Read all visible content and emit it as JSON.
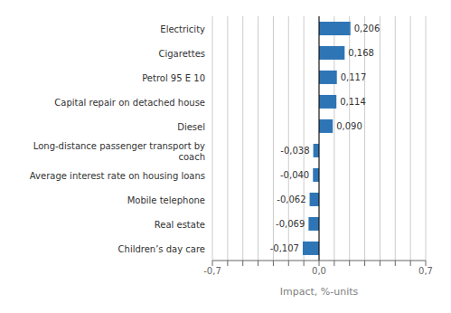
{
  "chart_data": {
    "type": "bar",
    "orientation": "horizontal",
    "xlabel": "Impact, %-units",
    "categories": [
      "Children’s day care",
      "Real estate",
      "Mobile telephone",
      "Average interest rate on housing loans",
      "Long-distance passenger transport by\ncoach",
      "Diesel",
      "Capital repair on detached house",
      "Petrol 95 E 10",
      "Cigarettes",
      "Electricity"
    ],
    "values": [
      -0.107,
      -0.069,
      -0.062,
      -0.04,
      -0.038,
      0.09,
      0.114,
      0.117,
      0.168,
      0.206
    ],
    "value_labels": [
      "-0,107",
      "-0,069",
      "-0,062",
      "-0,040",
      "-0,038",
      "0,090",
      "0,114",
      "0,117",
      "0,168",
      "0,206"
    ],
    "data_labels": true,
    "color": "#2E75B6",
    "xlim": [
      -0.7,
      0.7
    ],
    "xticks": [
      {
        "value": -0.7,
        "label": "-0,7"
      },
      {
        "value": -0.6,
        "label": null
      },
      {
        "value": -0.5,
        "label": null
      },
      {
        "value": -0.4,
        "label": null
      },
      {
        "value": -0.3,
        "label": null
      },
      {
        "value": -0.2,
        "label": null
      },
      {
        "value": -0.1,
        "label": null
      },
      {
        "value": 0.0,
        "label": "0,0"
      },
      {
        "value": 0.1,
        "label": null
      },
      {
        "value": 0.2,
        "label": null
      },
      {
        "value": 0.3,
        "label": null
      },
      {
        "value": 0.4,
        "label": null
      },
      {
        "value": 0.5,
        "label": null
      },
      {
        "value": 0.6,
        "label": null
      },
      {
        "value": 0.7,
        "label": "0,7"
      }
    ],
    "grid": true
  }
}
